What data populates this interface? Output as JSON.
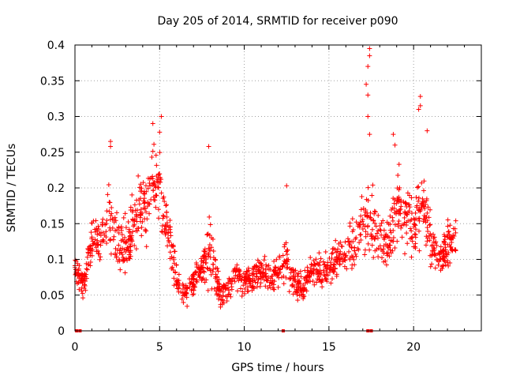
{
  "chart_data": {
    "type": "scatter",
    "title": "Day 205 of 2014, SRMTID for receiver p090",
    "xlabel": "GPS time / hours",
    "ylabel": "SRMTID / TECUs",
    "xlim": [
      0,
      24
    ],
    "ylim": [
      0,
      0.4
    ],
    "x_ticks": [
      0,
      5,
      10,
      15,
      20
    ],
    "y_ticks": [
      0,
      0.05,
      0.1,
      0.15,
      0.2,
      0.25,
      0.3,
      0.35,
      0.4
    ],
    "x_tick_labels": [
      "0",
      "5",
      "10",
      "15",
      "20"
    ],
    "y_tick_labels": [
      "0",
      "0.05",
      "0.1",
      "0.15",
      "0.2",
      "0.25",
      "0.3",
      "0.35",
      "0.4"
    ],
    "grid": true,
    "marker": "+",
    "color": "#ff0000",
    "trend": [
      [
        0.0,
        0.09,
        0.02
      ],
      [
        0.3,
        0.08,
        0.02
      ],
      [
        0.5,
        0.06,
        0.02
      ],
      [
        0.8,
        0.1,
        0.03
      ],
      [
        1.0,
        0.13,
        0.03
      ],
      [
        1.5,
        0.12,
        0.03
      ],
      [
        2.0,
        0.16,
        0.05
      ],
      [
        2.3,
        0.14,
        0.04
      ],
      [
        2.7,
        0.12,
        0.04
      ],
      [
        3.0,
        0.11,
        0.04
      ],
      [
        3.5,
        0.15,
        0.04
      ],
      [
        4.0,
        0.17,
        0.05
      ],
      [
        4.5,
        0.2,
        0.05
      ],
      [
        5.0,
        0.21,
        0.05
      ],
      [
        5.3,
        0.16,
        0.04
      ],
      [
        5.7,
        0.12,
        0.03
      ],
      [
        6.0,
        0.07,
        0.02
      ],
      [
        6.5,
        0.05,
        0.015
      ],
      [
        7.0,
        0.07,
        0.02
      ],
      [
        7.5,
        0.09,
        0.02
      ],
      [
        8.0,
        0.12,
        0.05
      ],
      [
        8.3,
        0.08,
        0.03
      ],
      [
        8.6,
        0.05,
        0.02
      ],
      [
        9.0,
        0.06,
        0.02
      ],
      [
        9.5,
        0.08,
        0.02
      ],
      [
        10.0,
        0.07,
        0.02
      ],
      [
        10.5,
        0.07,
        0.02
      ],
      [
        11.0,
        0.08,
        0.02
      ],
      [
        11.5,
        0.07,
        0.02
      ],
      [
        12.0,
        0.09,
        0.03
      ],
      [
        12.5,
        0.1,
        0.03
      ],
      [
        13.0,
        0.07,
        0.02
      ],
      [
        13.5,
        0.06,
        0.02
      ],
      [
        14.0,
        0.09,
        0.02
      ],
      [
        14.5,
        0.08,
        0.02
      ],
      [
        15.0,
        0.09,
        0.02
      ],
      [
        15.5,
        0.1,
        0.02
      ],
      [
        16.0,
        0.11,
        0.02
      ],
      [
        16.5,
        0.12,
        0.03
      ],
      [
        17.0,
        0.15,
        0.03
      ],
      [
        17.5,
        0.15,
        0.06
      ],
      [
        18.0,
        0.13,
        0.03
      ],
      [
        18.5,
        0.12,
        0.03
      ],
      [
        19.0,
        0.18,
        0.05
      ],
      [
        19.5,
        0.16,
        0.04
      ],
      [
        20.0,
        0.15,
        0.04
      ],
      [
        20.5,
        0.18,
        0.05
      ],
      [
        21.0,
        0.13,
        0.04
      ],
      [
        21.5,
        0.1,
        0.02
      ],
      [
        22.0,
        0.12,
        0.03
      ],
      [
        22.5,
        0.13,
        0.03
      ]
    ],
    "zero_markers_x": [
      0.1,
      0.3,
      12.3,
      17.3,
      17.5
    ],
    "peaks": [
      [
        17.4,
        0.395
      ],
      [
        17.4,
        0.385
      ],
      [
        17.3,
        0.37
      ],
      [
        17.2,
        0.345
      ],
      [
        17.3,
        0.33
      ],
      [
        17.3,
        0.3
      ],
      [
        17.4,
        0.275
      ],
      [
        4.6,
        0.29
      ],
      [
        5.1,
        0.3
      ],
      [
        5.0,
        0.278
      ],
      [
        2.1,
        0.265
      ],
      [
        2.1,
        0.258
      ],
      [
        7.9,
        0.258
      ],
      [
        20.4,
        0.328
      ],
      [
        20.4,
        0.315
      ],
      [
        20.3,
        0.31
      ],
      [
        18.8,
        0.275
      ],
      [
        18.9,
        0.26
      ],
      [
        20.8,
        0.28
      ],
      [
        12.5,
        0.203
      ]
    ]
  }
}
